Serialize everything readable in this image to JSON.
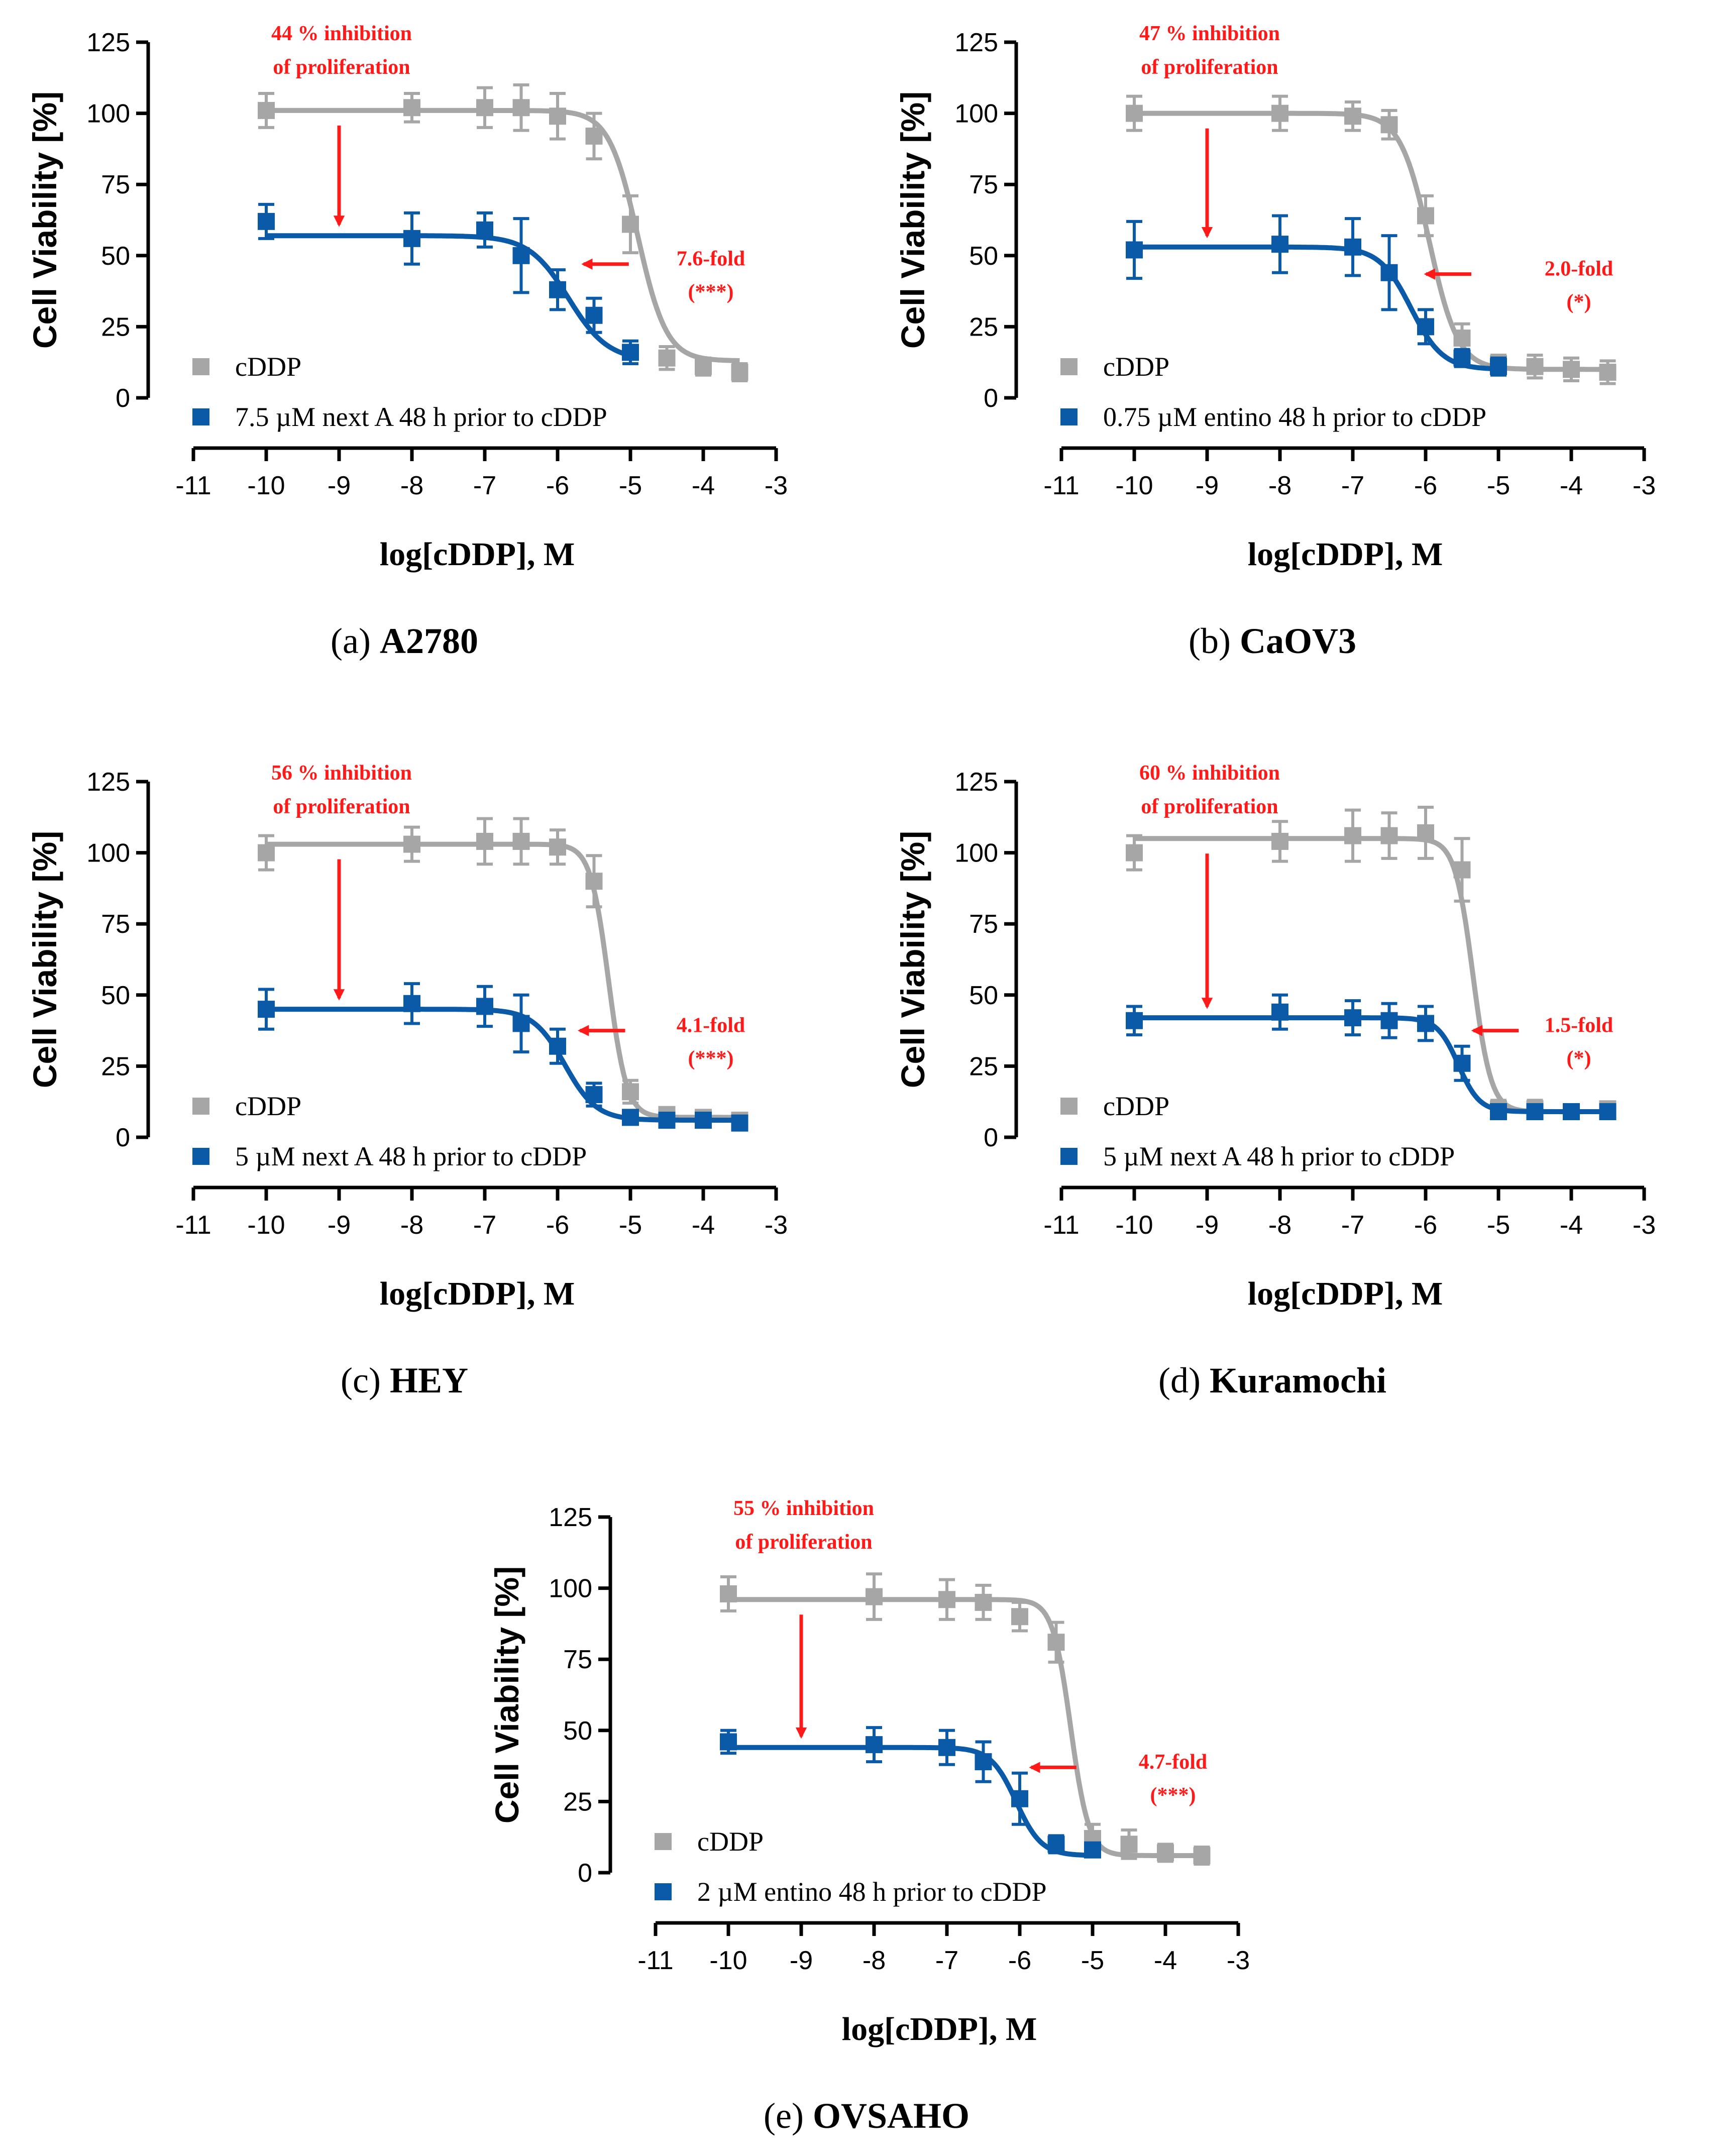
{
  "figure": {
    "panels": [
      {
        "letter": "(a)",
        "name": "A2780"
      },
      {
        "letter": "(b)",
        "name": "CaOV3"
      },
      {
        "letter": "(c)",
        "name": "HEY"
      },
      {
        "letter": "(d)",
        "name": "Kuramochi"
      },
      {
        "letter": "(e)",
        "name": "OVSAHO"
      }
    ]
  },
  "colors": {
    "cddp": "#a6a6a6",
    "combo": "#0a5aa8",
    "annotation": "#ff1a1a"
  },
  "chart_data": [
    {
      "type": "scatter",
      "title": "(a) A2780",
      "xlabel": "log[cDDP], M",
      "ylabel": "Cell Viability [%]",
      "xlim": [
        -11,
        -3
      ],
      "ylim": [
        0,
        125
      ],
      "xticks": [
        -11,
        -10,
        -9,
        -8,
        -7,
        -6,
        -5,
        -4,
        -3
      ],
      "yticks": [
        0,
        25,
        50,
        75,
        100,
        125
      ],
      "series": [
        {
          "name": "cDDP",
          "x": [
            -10,
            -8,
            -7,
            -6.5,
            -6,
            -5.5,
            -5,
            -4.5,
            -4,
            -3.5
          ],
          "y": [
            101,
            102,
            102,
            102,
            99,
            92,
            61,
            14,
            11,
            9
          ],
          "err": [
            6,
            5,
            7,
            8,
            8,
            8,
            10,
            4,
            3,
            3
          ],
          "fit": {
            "top": 101,
            "bottom": 13,
            "logIC50": -4.9,
            "hill": 2.2
          }
        },
        {
          "name": "7.5 µM next A 48 h prior to cDDP",
          "x": [
            -10,
            -8,
            -7,
            -6.5,
            -6,
            -5.5,
            -5
          ],
          "y": [
            62,
            56,
            59,
            50,
            38,
            29,
            16
          ],
          "err": [
            6,
            9,
            6,
            13,
            7,
            6,
            4
          ],
          "fit": {
            "top": 57,
            "bottom": 13,
            "logIC50": -5.85,
            "hill": 1.6
          }
        }
      ],
      "annotations": {
        "inhibition_line1": "44 % inhibition",
        "inhibition_line2": "of proliferation",
        "fold": "7.6-fold",
        "significance": "(***)"
      }
    },
    {
      "type": "scatter",
      "title": "(b) CaOV3",
      "xlabel": "log[cDDP], M",
      "ylabel": "Cell Viability [%]",
      "xlim": [
        -11,
        -3
      ],
      "ylim": [
        0,
        125
      ],
      "xticks": [
        -11,
        -10,
        -9,
        -8,
        -7,
        -6,
        -5,
        -4,
        -3
      ],
      "yticks": [
        0,
        25,
        50,
        75,
        100,
        125
      ],
      "series": [
        {
          "name": "cDDP",
          "x": [
            -10,
            -8,
            -7,
            -6.5,
            -6,
            -5.5,
            -5,
            -4.5,
            -4,
            -3.5
          ],
          "y": [
            100,
            100,
            99,
            96,
            64,
            21,
            12,
            11,
            10,
            9
          ],
          "err": [
            6,
            6,
            5,
            5,
            7,
            5,
            3,
            4,
            4,
            4
          ],
          "fit": {
            "top": 100,
            "bottom": 10,
            "logIC50": -5.95,
            "hill": 2.2
          }
        },
        {
          "name": "0.75 µM entino 48 h prior to cDDP",
          "x": [
            -10,
            -8,
            -7,
            -6.5,
            -6,
            -5.5,
            -5
          ],
          "y": [
            52,
            54,
            53,
            44,
            25,
            14,
            11
          ],
          "err": [
            10,
            10,
            10,
            13,
            6,
            3,
            3
          ],
          "fit": {
            "top": 53,
            "bottom": 10,
            "logIC50": -6.2,
            "hill": 2.0
          }
        }
      ],
      "annotations": {
        "inhibition_line1": "47 % inhibition",
        "inhibition_line2": "of proliferation",
        "fold": "2.0-fold",
        "significance": "(*)"
      }
    },
    {
      "type": "scatter",
      "title": "(c) HEY",
      "xlabel": "log[cDDP], M",
      "ylabel": "Cell Viability [%]",
      "xlim": [
        -11,
        -3
      ],
      "ylim": [
        0,
        125
      ],
      "xticks": [
        -11,
        -10,
        -9,
        -8,
        -7,
        -6,
        -5,
        -4,
        -3
      ],
      "yticks": [
        0,
        25,
        50,
        75,
        100,
        125
      ],
      "series": [
        {
          "name": "cDDP",
          "x": [
            -10,
            -8,
            -7,
            -6.5,
            -6,
            -5.5,
            -5,
            -4.5,
            -4,
            -3.5
          ],
          "y": [
            100,
            103,
            104,
            104,
            102,
            90,
            16,
            8,
            7,
            6
          ],
          "err": [
            6,
            6,
            8,
            8,
            6,
            9,
            4,
            2,
            2,
            2
          ],
          "fit": {
            "top": 103,
            "bottom": 7,
            "logIC50": -5.3,
            "hill": 3.5
          }
        },
        {
          "name": "5 µM next A 48 h prior to cDDP",
          "x": [
            -10,
            -8,
            -7,
            -6.5,
            -6,
            -5.5,
            -5,
            -4.5,
            -4,
            -3.5
          ],
          "y": [
            45,
            47,
            46,
            40,
            32,
            15,
            7,
            6,
            6,
            5
          ],
          "err": [
            7,
            7,
            7,
            10,
            6,
            4,
            2,
            2,
            2,
            2
          ],
          "fit": {
            "top": 45,
            "bottom": 6,
            "logIC50": -5.9,
            "hill": 2.0
          }
        }
      ],
      "annotations": {
        "inhibition_line1": "56 % inhibition",
        "inhibition_line2": "of proliferation",
        "fold": "4.1-fold",
        "significance": "(***)"
      }
    },
    {
      "type": "scatter",
      "title": "(d) Kuramochi",
      "xlabel": "log[cDDP], M",
      "ylabel": "Cell Viability [%]",
      "xlim": [
        -11,
        -3
      ],
      "ylim": [
        0,
        125
      ],
      "xticks": [
        -11,
        -10,
        -9,
        -8,
        -7,
        -6,
        -5,
        -4,
        -3
      ],
      "yticks": [
        0,
        25,
        50,
        75,
        100,
        125
      ],
      "series": [
        {
          "name": "cDDP",
          "x": [
            -10,
            -8,
            -7,
            -6.5,
            -6,
            -5.5,
            -5,
            -4.5,
            -4,
            -3.5
          ],
          "y": [
            100,
            104,
            106,
            106,
            107,
            94,
            10,
            10,
            9,
            10
          ],
          "err": [
            6,
            7,
            9,
            8,
            9,
            11,
            3,
            3,
            2,
            2
          ],
          "fit": {
            "top": 105,
            "bottom": 9,
            "logIC50": -5.35,
            "hill": 3.5
          }
        },
        {
          "name": "5 µM next A 48 h prior to cDDP",
          "x": [
            -10,
            -8,
            -7,
            -6.5,
            -6,
            -5.5,
            -5,
            -4.5,
            -4,
            -3.5
          ],
          "y": [
            41,
            44,
            42,
            41,
            40,
            26,
            9,
            9,
            9,
            9
          ],
          "err": [
            5,
            6,
            6,
            6,
            6,
            6,
            2,
            2,
            2,
            2
          ],
          "fit": {
            "top": 42,
            "bottom": 9,
            "logIC50": -5.55,
            "hill": 3.0
          }
        }
      ],
      "annotations": {
        "inhibition_line1": "60 % inhibition",
        "inhibition_line2": "of proliferation",
        "fold": "1.5-fold",
        "significance": "(*)"
      }
    },
    {
      "type": "scatter",
      "title": "(e) OVSAHO",
      "xlabel": "log[cDDP], M",
      "ylabel": "Cell Viability [%]",
      "xlim": [
        -11,
        -3
      ],
      "ylim": [
        0,
        125
      ],
      "xticks": [
        -11,
        -10,
        -9,
        -8,
        -7,
        -6,
        -5,
        -4,
        -3
      ],
      "yticks": [
        0,
        25,
        50,
        75,
        100,
        125
      ],
      "series": [
        {
          "name": "cDDP",
          "x": [
            -10,
            -8,
            -7,
            -6.5,
            -6,
            -5.5,
            -5,
            -4.5,
            -4,
            -3.5
          ],
          "y": [
            98,
            97,
            96,
            95,
            90,
            81,
            12,
            10,
            7,
            6
          ],
          "err": [
            6,
            8,
            7,
            6,
            5,
            7,
            5,
            5,
            3,
            3
          ],
          "fit": {
            "top": 96,
            "bottom": 6,
            "logIC50": -5.3,
            "hill": 3.5
          }
        },
        {
          "name": "2 µM entino 48 h prior to cDDP",
          "x": [
            -10,
            -8,
            -7,
            -6.5,
            -6,
            -5.5,
            -5
          ],
          "y": [
            46,
            45,
            44,
            39,
            26,
            10,
            8
          ],
          "err": [
            4,
            6,
            6,
            7,
            9,
            3,
            2
          ],
          "fit": {
            "top": 44,
            "bottom": 6,
            "logIC50": -6.05,
            "hill": 2.5
          }
        }
      ],
      "annotations": {
        "inhibition_line1": "55 % inhibition",
        "inhibition_line2": "of proliferation",
        "fold": "4.7-fold",
        "significance": "(***)"
      }
    }
  ]
}
